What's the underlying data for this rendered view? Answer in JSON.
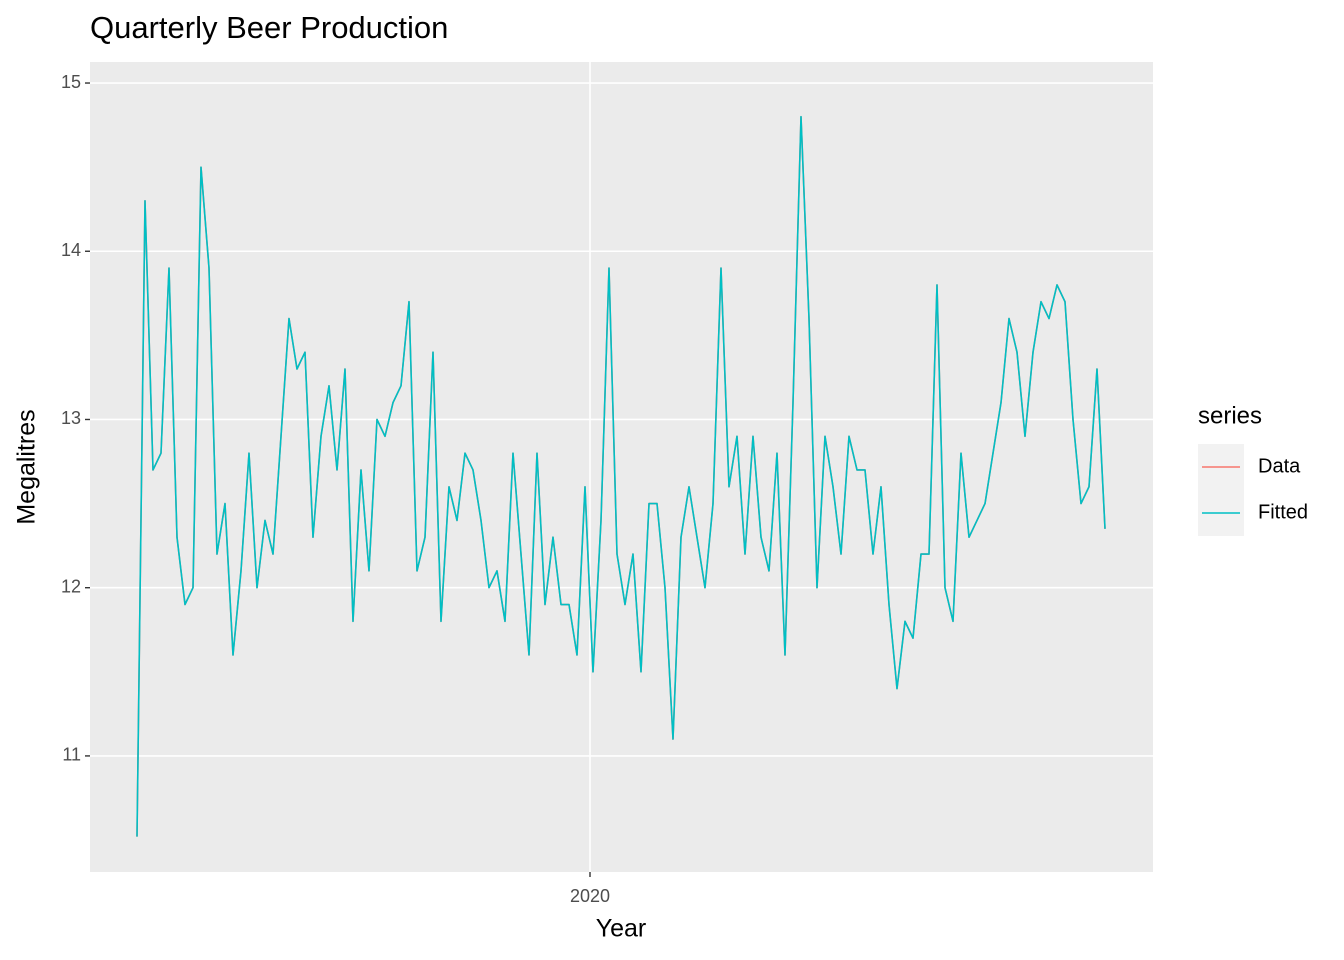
{
  "chart_data": {
    "type": "line",
    "title": "Quarterly Beer Production",
    "x_label": "Year",
    "y_label": "Megalitres",
    "legend_title": "series",
    "legend_position": "right",
    "grid": true,
    "background": "#EBEBEB",
    "xlim": [
      2019.5,
      2020.563
    ],
    "xticks": [
      2020
    ],
    "ylim": [
      10.31,
      15.125
    ],
    "yticks": [
      11,
      12,
      13,
      14,
      15
    ],
    "x": [
      2019.547,
      2019.555,
      2019.563,
      2019.571,
      2019.579,
      2019.587,
      2019.595,
      2019.603,
      2019.611,
      2019.619,
      2019.627,
      2019.635,
      2019.643,
      2019.651,
      2019.659,
      2019.667,
      2019.675,
      2019.683,
      2019.691,
      2019.699,
      2019.707,
      2019.715,
      2019.723,
      2019.731,
      2019.739,
      2019.747,
      2019.755,
      2019.763,
      2019.771,
      2019.779,
      2019.787,
      2019.795,
      2019.803,
      2019.811,
      2019.819,
      2019.827,
      2019.835,
      2019.843,
      2019.851,
      2019.859,
      2019.867,
      2019.875,
      2019.883,
      2019.891,
      2019.899,
      2019.907,
      2019.915,
      2019.923,
      2019.931,
      2019.939,
      2019.947,
      2019.955,
      2019.963,
      2019.971,
      2019.979,
      2019.987,
      2019.995,
      2020.003,
      2020.011,
      2020.019,
      2020.027,
      2020.035,
      2020.043,
      2020.051,
      2020.059,
      2020.067,
      2020.075,
      2020.083,
      2020.091,
      2020.099,
      2020.107,
      2020.115,
      2020.123,
      2020.131,
      2020.139,
      2020.147,
      2020.155,
      2020.163,
      2020.171,
      2020.179,
      2020.187,
      2020.195,
      2020.203,
      2020.211,
      2020.219,
      2020.227,
      2020.235,
      2020.243,
      2020.251,
      2020.259,
      2020.267,
      2020.275,
      2020.283,
      2020.291,
      2020.299,
      2020.307,
      2020.315,
      2020.323,
      2020.331,
      2020.339,
      2020.347,
      2020.355,
      2020.363,
      2020.371,
      2020.379,
      2020.387,
      2020.395,
      2020.403,
      2020.411,
      2020.419,
      2020.427,
      2020.435,
      2020.443,
      2020.451,
      2020.459,
      2020.467,
      2020.475,
      2020.483,
      2020.491,
      2020.499,
      2020.507,
      2020.515
    ],
    "series": [
      {
        "name": "Data",
        "color": "#F8766D",
        "values": [
          10.52,
          14.3,
          12.7,
          12.8,
          13.9,
          12.3,
          11.9,
          12.0,
          14.5,
          13.9,
          12.2,
          12.5,
          11.6,
          12.1,
          12.8,
          12.0,
          12.4,
          12.2,
          12.9,
          13.6,
          13.3,
          13.4,
          12.3,
          12.9,
          13.2,
          12.7,
          13.3,
          11.8,
          12.7,
          12.1,
          13.0,
          12.9,
          13.1,
          13.2,
          13.7,
          12.1,
          12.3,
          13.4,
          11.8,
          12.6,
          12.4,
          12.8,
          12.7,
          12.4,
          12.0,
          12.1,
          11.8,
          12.8,
          12.2,
          11.6,
          12.8,
          11.9,
          12.3,
          11.9,
          11.9,
          11.6,
          12.6,
          11.5,
          12.4,
          13.9,
          12.2,
          11.9,
          12.2,
          11.5,
          12.5,
          12.5,
          12.0,
          11.1,
          12.3,
          12.6,
          12.3,
          12.0,
          12.5,
          13.9,
          12.6,
          12.9,
          12.2,
          12.9,
          12.3,
          12.1,
          12.8,
          11.6,
          13.1,
          14.8,
          13.6,
          12.0,
          12.9,
          12.6,
          12.2,
          12.9,
          12.7,
          12.7,
          12.2,
          12.6,
          11.9,
          11.4,
          11.8,
          11.7,
          12.2,
          12.2,
          13.8,
          12.0,
          11.8,
          12.8,
          12.3,
          12.4,
          12.5,
          12.8,
          13.1,
          13.6,
          13.4,
          12.9,
          13.4,
          13.7,
          13.6,
          13.8,
          13.7,
          13.0,
          12.5,
          12.6,
          13.3,
          12.35
        ]
      },
      {
        "name": "Fitted",
        "color": "#00BFC4",
        "values": [
          10.52,
          14.3,
          12.7,
          12.8,
          13.9,
          12.3,
          11.9,
          12.0,
          14.5,
          13.9,
          12.2,
          12.5,
          11.6,
          12.1,
          12.8,
          12.0,
          12.4,
          12.2,
          12.9,
          13.6,
          13.3,
          13.4,
          12.3,
          12.9,
          13.2,
          12.7,
          13.3,
          11.8,
          12.7,
          12.1,
          13.0,
          12.9,
          13.1,
          13.2,
          13.7,
          12.1,
          12.3,
          13.4,
          11.8,
          12.6,
          12.4,
          12.8,
          12.7,
          12.4,
          12.0,
          12.1,
          11.8,
          12.8,
          12.2,
          11.6,
          12.8,
          11.9,
          12.3,
          11.9,
          11.9,
          11.6,
          12.6,
          11.5,
          12.4,
          13.9,
          12.2,
          11.9,
          12.2,
          11.5,
          12.5,
          12.5,
          12.0,
          11.1,
          12.3,
          12.6,
          12.3,
          12.0,
          12.5,
          13.9,
          12.6,
          12.9,
          12.2,
          12.9,
          12.3,
          12.1,
          12.8,
          11.6,
          13.1,
          14.8,
          13.6,
          12.0,
          12.9,
          12.6,
          12.2,
          12.9,
          12.7,
          12.7,
          12.2,
          12.6,
          11.9,
          11.4,
          11.8,
          11.7,
          12.2,
          12.2,
          13.8,
          12.0,
          11.8,
          12.8,
          12.3,
          12.4,
          12.5,
          12.8,
          13.1,
          13.6,
          13.4,
          12.9,
          13.4,
          13.7,
          13.6,
          13.8,
          13.7,
          13.0,
          12.5,
          12.6,
          13.3,
          12.35
        ]
      }
    ]
  }
}
